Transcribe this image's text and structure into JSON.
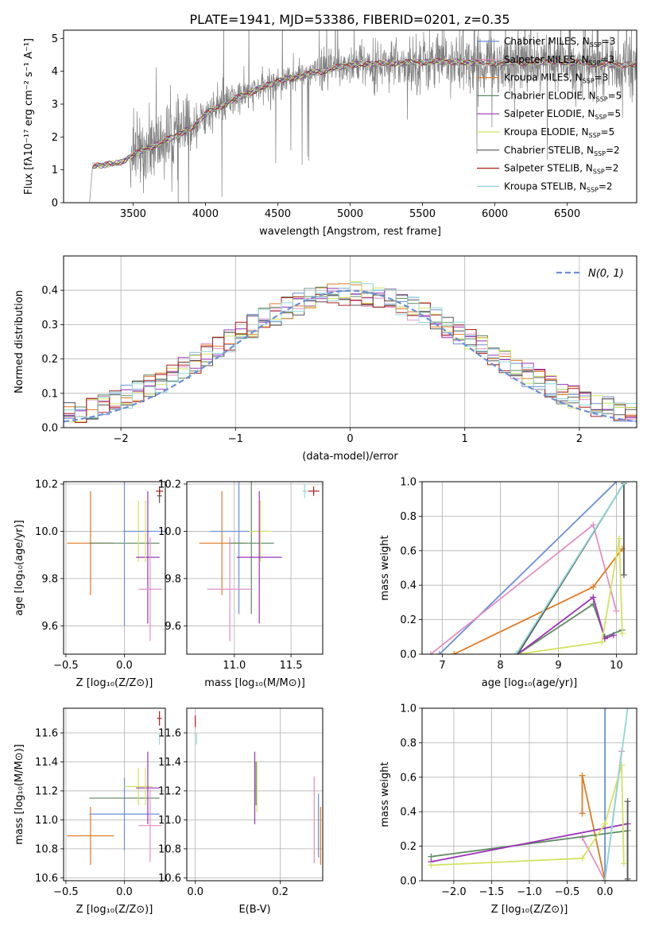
{
  "figure": {
    "title": "PLATE=1941, MJD=53386, FIBERID=0201, z=0.35"
  },
  "colors": {
    "Chabrier MILES": "#6a8fd8",
    "Salpeter MILES": "#e28fc4",
    "Kroupa MILES": "#e07a22",
    "Chabrier ELODIE": "#5d8a62",
    "Salpeter ELODIE": "#9b33b8",
    "Kroupa ELODIE": "#d2e35c",
    "Chabrier STELIB": "#555555",
    "Salpeter STELIB": "#b01e1e",
    "Kroupa STELIB": "#8fd8d8",
    "data": "#808080"
  },
  "chart_data": [
    {
      "id": "spectrum",
      "type": "line",
      "title": "PLATE=1941, MJD=53386, FIBERID=0201, z=0.35",
      "xlabel": "wavelength [Angstrom, rest frame]",
      "ylabel": "Flux [fλ10⁻¹⁷ erg cm⁻² s⁻¹ A⁻¹]",
      "xlim": [
        3020,
        6980
      ],
      "ylim": [
        0,
        5.25
      ],
      "xticks": [
        3500,
        4000,
        4500,
        5000,
        5500,
        6000,
        6500
      ],
      "yticks": [
        0,
        1,
        2,
        3,
        4,
        5
      ],
      "legend_position": "top-right",
      "continuum": {
        "x": [
          3200,
          3220,
          3400,
          3500,
          3700,
          3900,
          4000,
          4200,
          4500,
          4800,
          5000,
          5300,
          5600,
          6000,
          6400,
          6800
        ],
        "y": [
          0,
          1.12,
          1.2,
          1.45,
          1.85,
          2.25,
          2.7,
          3.15,
          3.7,
          4.0,
          4.2,
          4.25,
          4.3,
          4.25,
          4.3,
          4.2
        ]
      },
      "series": [
        {
          "name": "Chabrier MILES, N_SSP=3",
          "model": "Chabrier MILES"
        },
        {
          "name": "Salpeter MILES, N_SSP=3",
          "model": "Salpeter MILES"
        },
        {
          "name": "Kroupa MILES, N_SSP=3",
          "model": "Kroupa MILES"
        },
        {
          "name": "Chabrier ELODIE, N_SSP=5",
          "model": "Chabrier ELODIE"
        },
        {
          "name": "Salpeter ELODIE, N_SSP=5",
          "model": "Salpeter ELODIE"
        },
        {
          "name": "Kroupa ELODIE, N_SSP=5",
          "model": "Kroupa ELODIE"
        },
        {
          "name": "Chabrier STELIB, N_SSP=2",
          "model": "Chabrier STELIB"
        },
        {
          "name": "Salpeter STELIB, N_SSP=2",
          "model": "Salpeter STELIB"
        },
        {
          "name": "Kroupa STELIB, N_SSP=2",
          "model": "Kroupa STELIB"
        }
      ]
    },
    {
      "id": "residuals",
      "type": "line",
      "xlabel": "(data-model)/error",
      "ylabel": "Normed distribution",
      "xlim": [
        -2.5,
        2.5
      ],
      "ylim": [
        0,
        0.5
      ],
      "xticks": [
        -2,
        -1,
        0,
        1,
        2
      ],
      "xtick_labels": [
        "−2",
        "−1",
        "0",
        "1",
        "2"
      ],
      "yticks": [
        0.0,
        0.1,
        0.2,
        0.3,
        0.4
      ],
      "ytick_labels": [
        "0.0",
        "0.1",
        "0.2",
        "0.3",
        "0.4"
      ],
      "grid": true,
      "legend_position": "top-right",
      "legend_label": "N(0, 1)",
      "bin_width": 0.1,
      "bins_from": -2.5
    },
    {
      "id": "age_vs_Z",
      "type": "scatter",
      "xlabel": "Z [log₁₀(Z/Z⊙)]",
      "ylabel": "age [log₁₀(age/yr)]",
      "xlim": [
        -0.52,
        0.35
      ],
      "ylim": [
        9.48,
        10.21
      ],
      "xticks": [
        -0.5,
        0.0
      ],
      "xtick_labels": [
        "−0.5",
        "0.0"
      ],
      "yticks": [
        9.6,
        9.8,
        10.0,
        10.2
      ],
      "ytick_labels": [
        "9.6",
        "9.8",
        "10.0",
        "10.2"
      ],
      "grid": true,
      "points": [
        {
          "model": "Kroupa MILES",
          "x": -0.29,
          "y": 9.95,
          "xerr": 0.2,
          "yerr": 0.22
        },
        {
          "model": "Chabrier ELODIE",
          "x": 0.0,
          "y": 9.95,
          "xerr": 0.3,
          "yerr": 0.0
        },
        {
          "model": "Chabrier MILES",
          "x": 0.0,
          "y": 9.95,
          "xerr": 0.0,
          "yerr": 0.35
        },
        {
          "model": "Kroupa ELODIE",
          "x": 0.12,
          "y": 10.0,
          "xerr": 0.12,
          "yerr": 0.13
        },
        {
          "model": "Chabrier MILES",
          "x": 0.17,
          "y": 10.0,
          "xerr": 0.18,
          "yerr": 0.0
        },
        {
          "model": "Salpeter ELODIE",
          "x": 0.2,
          "y": 9.89,
          "xerr": 0.1,
          "yerr": 0.28
        },
        {
          "model": "Salpeter MILES",
          "x": 0.22,
          "y": 9.755,
          "xerr": 0.1,
          "yerr": 0.22
        },
        {
          "model": "Kroupa ELODIE",
          "x": 0.18,
          "y": 10.0,
          "xerr": 0.0,
          "yerr": 0.13
        },
        {
          "model": "Chabrier STELIB",
          "x": 0.3,
          "y": 10.15,
          "xerr": 0.02,
          "yerr": 0.03
        },
        {
          "model": "Salpeter STELIB",
          "x": 0.3,
          "y": 10.17,
          "xerr": 0.03,
          "yerr": 0.02
        }
      ]
    },
    {
      "id": "age_vs_mass",
      "type": "scatter",
      "xlabel": "mass [log₁₀(M/M⊙)]",
      "ylabel": "",
      "xlim": [
        10.58,
        11.78
      ],
      "ylim": [
        9.48,
        10.21
      ],
      "xticks": [
        11.0,
        11.5
      ],
      "xtick_labels": [
        "11.0",
        "11.5"
      ],
      "yticks": [
        9.6,
        9.8,
        10.0,
        10.2
      ],
      "ytick_labels": [
        "9.6",
        "9.8",
        "10.0",
        "10.2"
      ],
      "grid": true,
      "points": [
        {
          "model": "Kroupa MILES",
          "x": 10.89,
          "y": 9.95,
          "xerr": 0.2,
          "yerr": 0.22
        },
        {
          "model": "Chabrier MILES",
          "x": 11.04,
          "y": 10.0,
          "xerr": 0.25,
          "yerr": 0.35
        },
        {
          "model": "Chabrier ELODIE",
          "x": 11.15,
          "y": 9.95,
          "xerr": 0.2,
          "yerr": 0.3
        },
        {
          "model": "Kroupa ELODIE",
          "x": 11.23,
          "y": 10.0,
          "xerr": 0.1,
          "yerr": 0.13
        },
        {
          "model": "Salpeter ELODIE",
          "x": 11.22,
          "y": 9.89,
          "xerr": 0.2,
          "yerr": 0.28
        },
        {
          "model": "Salpeter MILES",
          "x": 10.96,
          "y": 9.755,
          "xerr": 0.2,
          "yerr": 0.22
        },
        {
          "model": "Salpeter STELIB",
          "x": 11.7,
          "y": 10.17,
          "xerr": 0.05,
          "yerr": 0.02
        },
        {
          "model": "Kroupa STELIB",
          "x": 11.62,
          "y": 10.17,
          "xerr": 0.02,
          "yerr": 0.03
        }
      ]
    },
    {
      "id": "weight_vs_age",
      "type": "line",
      "xlabel": "age [log₁₀(age/yr)]",
      "ylabel": "mass weight",
      "xlim": [
        6.65,
        10.35
      ],
      "ylim": [
        0,
        1
      ],
      "xticks": [
        7,
        8,
        9,
        10
      ],
      "yticks": [
        0.0,
        0.2,
        0.4,
        0.6,
        0.8,
        1.0
      ],
      "ytick_labels": [
        "0.0",
        "0.2",
        "0.4",
        "0.6",
        "0.8",
        "1.0"
      ],
      "grid": true,
      "series": [
        {
          "model": "Chabrier MILES",
          "x": [
            6.95,
            10.0
          ],
          "y": [
            0.0,
            1.0
          ]
        },
        {
          "model": "Salpeter MILES",
          "x": [
            6.8,
            9.6,
            10.0
          ],
          "y": [
            0.0,
            0.75,
            0.25
          ]
        },
        {
          "model": "Kroupa MILES",
          "x": [
            7.2,
            9.6,
            10.1
          ],
          "y": [
            0.0,
            0.39,
            0.61
          ]
        },
        {
          "model": "Chabrier ELODIE",
          "x": [
            8.3,
            9.6,
            9.8,
            10.1
          ],
          "y": [
            0.0,
            0.29,
            0.1,
            0.14
          ]
        },
        {
          "model": "Salpeter ELODIE",
          "x": [
            8.3,
            9.6,
            9.8,
            9.95
          ],
          "y": [
            0.0,
            0.33,
            0.09,
            0.11
          ]
        },
        {
          "model": "Kroupa ELODIE",
          "x": [
            8.3,
            9.75,
            10.05,
            10.1
          ],
          "y": [
            0.0,
            0.07,
            0.67,
            0.12
          ]
        },
        {
          "model": "Chabrier STELIB",
          "x": [
            8.3,
            10.13,
            10.13
          ],
          "y": [
            0.0,
            0.99,
            0.46
          ]
        },
        {
          "model": "Kroupa STELIB",
          "x": [
            8.27,
            10.15
          ],
          "y": [
            0.0,
            1.0
          ]
        }
      ]
    },
    {
      "id": "mass_vs_Z",
      "type": "scatter",
      "xlabel": "Z [log₁₀(Z/Z⊙)]",
      "ylabel": "mass [log₁₀(M/M⊙)]",
      "xlim": [
        -0.52,
        0.35
      ],
      "ylim": [
        10.58,
        11.77
      ],
      "xticks": [
        -0.5,
        0.0
      ],
      "xtick_labels": [
        "−0.5",
        "0.0"
      ],
      "yticks": [
        10.6,
        10.8,
        11.0,
        11.2,
        11.4,
        11.6
      ],
      "ytick_labels": [
        "10.6",
        "10.8",
        "11.0",
        "11.2",
        "11.4",
        "11.6"
      ],
      "grid": true,
      "points": [
        {
          "model": "Kroupa MILES",
          "x": -0.29,
          "y": 10.89,
          "xerr": 0.2,
          "yerr": 0.2
        },
        {
          "model": "Chabrier MILES",
          "x": 0.0,
          "y": 11.04,
          "xerr": 0.3,
          "yerr": 0.25
        },
        {
          "model": "Chabrier ELODIE",
          "x": 0.0,
          "y": 11.15,
          "xerr": 0.3,
          "yerr": 0.0
        },
        {
          "model": "Kroupa ELODIE",
          "x": 0.12,
          "y": 11.23,
          "xerr": 0.12,
          "yerr": 0.13
        },
        {
          "model": "Salpeter ELODIE",
          "x": 0.2,
          "y": 11.22,
          "xerr": 0.1,
          "yerr": 0.25
        },
        {
          "model": "Salpeter MILES",
          "x": 0.22,
          "y": 10.96,
          "xerr": 0.1,
          "yerr": 0.25
        },
        {
          "model": "Kroupa ELODIE",
          "x": 0.18,
          "y": 11.23,
          "xerr": 0.0,
          "yerr": 0.13
        },
        {
          "model": "Salpeter STELIB",
          "x": 0.3,
          "y": 11.7,
          "xerr": 0.02,
          "yerr": 0.05
        },
        {
          "model": "Kroupa STELIB",
          "x": 0.3,
          "y": 11.56,
          "xerr": 0.0,
          "yerr": 0.04
        }
      ]
    },
    {
      "id": "mass_vs_ebv",
      "type": "scatter",
      "xlabel": "E(B-V)",
      "ylabel": "",
      "xlim": [
        -0.02,
        0.3
      ],
      "ylim": [
        10.58,
        11.77
      ],
      "xticks": [
        0.0,
        0.2
      ],
      "xtick_labels": [
        "0.0",
        "0.2"
      ],
      "yticks": [
        10.6,
        10.8,
        11.0,
        11.2,
        11.4,
        11.6
      ],
      "ytick_labels": [
        "10.6",
        "10.8",
        "11.0",
        "11.2",
        "11.4",
        "11.6"
      ],
      "grid": true,
      "points": [
        {
          "model": "Salpeter STELIB",
          "x": 0.0,
          "y": 11.68,
          "xerr": 0.0,
          "yerr": 0.04
        },
        {
          "model": "Kroupa STELIB",
          "x": 0.003,
          "y": 11.56,
          "xerr": 0.0,
          "yerr": 0.04
        },
        {
          "model": "Salpeter ELODIE",
          "x": 0.14,
          "y": 11.22,
          "xerr": 0.0,
          "yerr": 0.25
        },
        {
          "model": "Kroupa ELODIE",
          "x": 0.145,
          "y": 11.23,
          "xerr": 0.0,
          "yerr": 0.18
        },
        {
          "model": "Chabrier ELODIE",
          "x": 0.143,
          "y": 11.25,
          "xerr": 0.0,
          "yerr": 0.15
        },
        {
          "model": "Salpeter MILES",
          "x": 0.28,
          "y": 11.0,
          "xerr": 0.0,
          "yerr": 0.3
        },
        {
          "model": "Kroupa MILES",
          "x": 0.295,
          "y": 10.89,
          "xerr": 0.0,
          "yerr": 0.2
        },
        {
          "model": "Chabrier MILES",
          "x": 0.29,
          "y": 10.96,
          "xerr": 0.0,
          "yerr": 0.22
        }
      ]
    },
    {
      "id": "weight_vs_Z",
      "type": "line",
      "xlabel": "Z [log₁₀(Z/Z⊙)]",
      "ylabel": "mass weight",
      "xlim": [
        -2.42,
        0.42
      ],
      "ylim": [
        0,
        1
      ],
      "xticks": [
        -2.0,
        -1.5,
        -1.0,
        -0.5,
        0.0
      ],
      "xtick_labels": [
        "−2.0",
        "−1.5",
        "−1.0",
        "−0.5",
        "0.0"
      ],
      "yticks": [
        0.0,
        0.2,
        0.4,
        0.6,
        0.8,
        1.0
      ],
      "ytick_labels": [
        "0.0",
        "0.2",
        "0.4",
        "0.6",
        "0.8",
        "1.0"
      ],
      "grid": true,
      "series": [
        {
          "model": "Chabrier MILES",
          "x": [
            0.0,
            0.0
          ],
          "y": [
            0.0,
            1.0
          ]
        },
        {
          "model": "Salpeter MILES",
          "x": [
            0.0,
            -0.3,
            0.0,
            0.22
          ],
          "y": [
            0.0,
            0.25,
            0.0,
            0.75
          ]
        },
        {
          "model": "Kroupa MILES",
          "x": [
            -0.3,
            -0.3,
            0.0
          ],
          "y": [
            0.39,
            0.61,
            0.0
          ]
        },
        {
          "model": "Chabrier ELODIE",
          "x": [
            -2.3,
            0.3,
            0.3
          ],
          "y": [
            0.14,
            0.29,
            0.0
          ]
        },
        {
          "model": "Salpeter ELODIE",
          "x": [
            -2.3,
            0.3
          ],
          "y": [
            0.11,
            0.33
          ]
        },
        {
          "model": "Kroupa ELODIE",
          "x": [
            -2.3,
            -0.3,
            0.0,
            0.22,
            0.25
          ],
          "y": [
            0.09,
            0.13,
            0.33,
            0.67,
            0.1
          ]
        },
        {
          "model": "Chabrier STELIB",
          "x": [
            0.3,
            0.3
          ],
          "y": [
            0.46,
            0.01
          ]
        },
        {
          "model": "Kroupa STELIB",
          "x": [
            0.0,
            0.3
          ],
          "y": [
            0.0,
            1.0
          ]
        }
      ]
    }
  ]
}
